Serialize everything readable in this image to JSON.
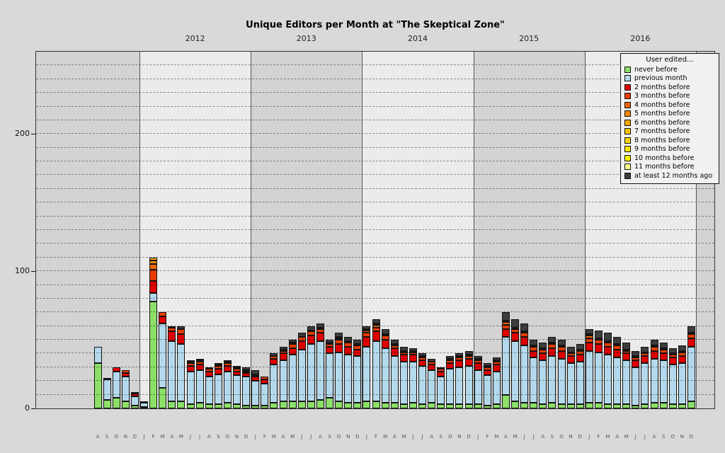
{
  "legend": {
    "title": "User edited...",
    "items": [
      {
        "label": "never before",
        "color": "#8ce068"
      },
      {
        "label": "previous month",
        "color": "#b4d9ec"
      },
      {
        "label": "2 months before",
        "color": "#e00000"
      },
      {
        "label": "3 months before",
        "color": "#e83c00"
      },
      {
        "label": "4 months before",
        "color": "#f06400"
      },
      {
        "label": "5 months before",
        "color": "#f58800"
      },
      {
        "label": "6 months before",
        "color": "#f9a800"
      },
      {
        "label": "7 months before",
        "color": "#fcc200"
      },
      {
        "label": "8 months before",
        "color": "#fdd700"
      },
      {
        "label": "9 months before",
        "color": "#ffe800"
      },
      {
        "label": "10 months before",
        "color": "#fff400"
      },
      {
        "label": "11 months before",
        "color": "#ffff8c"
      },
      {
        "label": "at least 12 months ago",
        "color": "#3d3d3d"
      }
    ]
  },
  "chart_data": {
    "type": "bar",
    "stacked": true,
    "title": "Unique Editors per Month at \"The Skeptical Zone\"",
    "xlabel": "",
    "ylabel": "",
    "ylim": [
      0,
      260
    ],
    "yticks": [
      0,
      100,
      200
    ],
    "grid_step": 10,
    "band_dark": "#d3d3d3",
    "band_light": "#ebebeb",
    "series": [
      "never before",
      "previous month",
      "2 months before",
      "3 months before",
      "4 months before",
      "5 months before",
      "6 months before",
      "7 months before",
      "8 months before",
      "9 months before",
      "10 months before",
      "11 months before",
      "at least 12 months ago"
    ],
    "years": [
      {
        "label": "2011",
        "months": 5,
        "show_label": false
      },
      {
        "label": "2012",
        "months": 12,
        "show_label": true
      },
      {
        "label": "2013",
        "months": 12,
        "show_label": true
      },
      {
        "label": "2014",
        "months": 12,
        "show_label": true
      },
      {
        "label": "2015",
        "months": 12,
        "show_label": true
      },
      {
        "label": "2016",
        "months": 12,
        "show_label": true
      }
    ],
    "bars": [
      {
        "m": "2011-08",
        "l": "A",
        "v": [
          33,
          12
        ]
      },
      {
        "m": "2011-09",
        "l": "S",
        "v": [
          6,
          15,
          1
        ]
      },
      {
        "m": "2011-10",
        "l": "O",
        "v": [
          8,
          19,
          3
        ]
      },
      {
        "m": "2011-11",
        "l": "N",
        "v": [
          5,
          18,
          3,
          2
        ]
      },
      {
        "m": "2011-12",
        "l": "D",
        "v": [
          2,
          7,
          2,
          1
        ]
      },
      {
        "m": "2012-01",
        "l": "J",
        "v": [
          1,
          3,
          1
        ]
      },
      {
        "m": "2012-02",
        "l": "F",
        "v": [
          78,
          6,
          9,
          8,
          4,
          3,
          2
        ]
      },
      {
        "m": "2012-03",
        "l": "M",
        "v": [
          15,
          47,
          5,
          3
        ]
      },
      {
        "m": "2012-04",
        "l": "A",
        "v": [
          5,
          44,
          7,
          3,
          0,
          0,
          0,
          0,
          0,
          0,
          0,
          0,
          1
        ]
      },
      {
        "m": "2012-05",
        "l": "M",
        "v": [
          5,
          42,
          7,
          4,
          0,
          0,
          0,
          0,
          0,
          0,
          0,
          0,
          2
        ]
      },
      {
        "m": "2012-06",
        "l": "J",
        "v": [
          3,
          24,
          4,
          2,
          1,
          0,
          0,
          0,
          0,
          0,
          0,
          0,
          1
        ]
      },
      {
        "m": "2012-07",
        "l": "J",
        "v": [
          4,
          24,
          4,
          2,
          1,
          0,
          0,
          0,
          0,
          0,
          0,
          0,
          1
        ]
      },
      {
        "m": "2012-08",
        "l": "A",
        "v": [
          3,
          20,
          4,
          2,
          0,
          1
        ]
      },
      {
        "m": "2012-09",
        "l": "S",
        "v": [
          3,
          22,
          4,
          2,
          1,
          1
        ]
      },
      {
        "m": "2012-10",
        "l": "O",
        "v": [
          4,
          23,
          4,
          2,
          1,
          0,
          0,
          0,
          0,
          0,
          0,
          0,
          1
        ]
      },
      {
        "m": "2012-11",
        "l": "N",
        "v": [
          3,
          21,
          3,
          2,
          1,
          0,
          0,
          0,
          0,
          0,
          0,
          0,
          1
        ]
      },
      {
        "m": "2012-12",
        "l": "D",
        "v": [
          2,
          21,
          3,
          1,
          1,
          0,
          0,
          0,
          0,
          0,
          0,
          0,
          2
        ]
      },
      {
        "m": "2013-01",
        "l": "J",
        "v": [
          2,
          18,
          3,
          1,
          1,
          0,
          0,
          0,
          0,
          0,
          0,
          0,
          3
        ]
      },
      {
        "m": "2013-02",
        "l": "F",
        "v": [
          2,
          16,
          3,
          2
        ]
      },
      {
        "m": "2013-03",
        "l": "M",
        "v": [
          4,
          28,
          4,
          2,
          0,
          0,
          0,
          0,
          0,
          0,
          0,
          0,
          2
        ]
      },
      {
        "m": "2013-04",
        "l": "A",
        "v": [
          5,
          30,
          5,
          2,
          1,
          0,
          0,
          0,
          0,
          0,
          0,
          0,
          2
        ]
      },
      {
        "m": "2013-05",
        "l": "M",
        "v": [
          5,
          34,
          5,
          3,
          1,
          0,
          0,
          0,
          0,
          0,
          0,
          0,
          2
        ]
      },
      {
        "m": "2013-06",
        "l": "J",
        "v": [
          5,
          38,
          6,
          3,
          0,
          0,
          0,
          0,
          0,
          0,
          0,
          0,
          3
        ]
      },
      {
        "m": "2013-07",
        "l": "J",
        "v": [
          5,
          42,
          6,
          3,
          1,
          0,
          0,
          0,
          0,
          0,
          0,
          0,
          3
        ]
      },
      {
        "m": "2013-08",
        "l": "A",
        "v": [
          6,
          43,
          6,
          3,
          1,
          0,
          0,
          0,
          0,
          0,
          0,
          0,
          3
        ]
      },
      {
        "m": "2013-09",
        "l": "S",
        "v": [
          8,
          32,
          5,
          2,
          1,
          0,
          0,
          0,
          0,
          0,
          0,
          0,
          2
        ]
      },
      {
        "m": "2013-10",
        "l": "O",
        "v": [
          5,
          36,
          6,
          3,
          1,
          1,
          0,
          0,
          0,
          0,
          0,
          0,
          3
        ]
      },
      {
        "m": "2013-11",
        "l": "N",
        "v": [
          4,
          35,
          6,
          3,
          1,
          0,
          0,
          0,
          0,
          0,
          0,
          0,
          3
        ]
      },
      {
        "m": "2013-12",
        "l": "D",
        "v": [
          4,
          34,
          5,
          3,
          1,
          0,
          0,
          0,
          0,
          0,
          0,
          0,
          3
        ]
      },
      {
        "m": "2014-01",
        "l": "J",
        "v": [
          5,
          40,
          7,
          3,
          2,
          1,
          0,
          0,
          0,
          0,
          0,
          0,
          2
        ]
      },
      {
        "m": "2014-02",
        "l": "F",
        "v": [
          5,
          44,
          7,
          3,
          2,
          1,
          0,
          0,
          0,
          0,
          0,
          0,
          3
        ]
      },
      {
        "m": "2014-03",
        "l": "M",
        "v": [
          4,
          40,
          6,
          3,
          1,
          0,
          0,
          0,
          0,
          0,
          0,
          0,
          4
        ]
      },
      {
        "m": "2014-04",
        "l": "A",
        "v": [
          4,
          34,
          6,
          2,
          1,
          0,
          0,
          0,
          0,
          0,
          0,
          0,
          3
        ]
      },
      {
        "m": "2014-05",
        "l": "M",
        "v": [
          3,
          31,
          5,
          2,
          1,
          0,
          0,
          0,
          0,
          0,
          0,
          0,
          3
        ]
      },
      {
        "m": "2014-06",
        "l": "J",
        "v": [
          4,
          30,
          5,
          2,
          1,
          0,
          0,
          0,
          0,
          0,
          0,
          0,
          2
        ]
      },
      {
        "m": "2014-07",
        "l": "J",
        "v": [
          3,
          28,
          4,
          2,
          1,
          0,
          0,
          0,
          0,
          0,
          0,
          0,
          2
        ]
      },
      {
        "m": "2014-08",
        "l": "A",
        "v": [
          4,
          24,
          4,
          2,
          0,
          0,
          0,
          0,
          0,
          0,
          0,
          0,
          2
        ]
      },
      {
        "m": "2014-09",
        "l": "S",
        "v": [
          3,
          20,
          4,
          2,
          0,
          0,
          0,
          0,
          0,
          0,
          0,
          0,
          1
        ]
      },
      {
        "m": "2014-10",
        "l": "O",
        "v": [
          3,
          26,
          4,
          2,
          1,
          0,
          0,
          0,
          0,
          0,
          0,
          0,
          2
        ]
      },
      {
        "m": "2014-11",
        "l": "N",
        "v": [
          3,
          27,
          5,
          2,
          1,
          0,
          0,
          0,
          0,
          0,
          0,
          0,
          2
        ]
      },
      {
        "m": "2014-12",
        "l": "D",
        "v": [
          3,
          28,
          5,
          2,
          1,
          0,
          0,
          0,
          0,
          0,
          0,
          0,
          3
        ]
      },
      {
        "m": "2015-01",
        "l": "J",
        "v": [
          3,
          25,
          5,
          2,
          1,
          0,
          0,
          0,
          0,
          0,
          0,
          0,
          2
        ]
      },
      {
        "m": "2015-02",
        "l": "F",
        "v": [
          2,
          22,
          4,
          2,
          1,
          0,
          0,
          0,
          0,
          0,
          0,
          0,
          2
        ]
      },
      {
        "m": "2015-03",
        "l": "M",
        "v": [
          3,
          24,
          5,
          2,
          1,
          0,
          0,
          0,
          0,
          0,
          0,
          0,
          2
        ]
      },
      {
        "m": "2015-04",
        "l": "A",
        "v": [
          10,
          42,
          6,
          3,
          2,
          1,
          0,
          0,
          0,
          0,
          0,
          0,
          6
        ]
      },
      {
        "m": "2015-05",
        "l": "M",
        "v": [
          5,
          44,
          6,
          3,
          1,
          0,
          0,
          0,
          0,
          0,
          0,
          0,
          6
        ]
      },
      {
        "m": "2015-06",
        "l": "J",
        "v": [
          4,
          42,
          6,
          3,
          1,
          0,
          0,
          0,
          0,
          0,
          0,
          0,
          6
        ]
      },
      {
        "m": "2015-07",
        "l": "J",
        "v": [
          4,
          33,
          5,
          3,
          1,
          0,
          0,
          0,
          0,
          0,
          0,
          0,
          4
        ]
      },
      {
        "m": "2015-08",
        "l": "A",
        "v": [
          3,
          32,
          5,
          3,
          1,
          0,
          0,
          0,
          0,
          0,
          0,
          0,
          4
        ]
      },
      {
        "m": "2015-09",
        "l": "S",
        "v": [
          4,
          34,
          6,
          3,
          1,
          0,
          0,
          0,
          0,
          0,
          0,
          0,
          4
        ]
      },
      {
        "m": "2015-10",
        "l": "O",
        "v": [
          3,
          33,
          6,
          3,
          1,
          0,
          0,
          0,
          0,
          0,
          0,
          0,
          4
        ]
      },
      {
        "m": "2015-11",
        "l": "N",
        "v": [
          3,
          30,
          5,
          2,
          1,
          0,
          0,
          0,
          0,
          0,
          0,
          0,
          4
        ]
      },
      {
        "m": "2015-12",
        "l": "D",
        "v": [
          3,
          31,
          5,
          3,
          1,
          0,
          0,
          0,
          0,
          0,
          0,
          0,
          4
        ]
      },
      {
        "m": "2016-01",
        "l": "J",
        "v": [
          4,
          38,
          6,
          3,
          2,
          1,
          0,
          0,
          0,
          0,
          0,
          0,
          4
        ]
      },
      {
        "m": "2016-02",
        "l": "F",
        "v": [
          4,
          37,
          6,
          3,
          1,
          0,
          0,
          0,
          0,
          0,
          0,
          0,
          6
        ]
      },
      {
        "m": "2016-03",
        "l": "M",
        "v": [
          3,
          36,
          6,
          3,
          1,
          0,
          0,
          0,
          0,
          0,
          0,
          0,
          6
        ]
      },
      {
        "m": "2016-04",
        "l": "A",
        "v": [
          3,
          34,
          6,
          3,
          1,
          0,
          0,
          0,
          0,
          0,
          0,
          0,
          5
        ]
      },
      {
        "m": "2016-05",
        "l": "M",
        "v": [
          3,
          32,
          5,
          2,
          1,
          0,
          0,
          0,
          0,
          0,
          0,
          0,
          5
        ]
      },
      {
        "m": "2016-06",
        "l": "J",
        "v": [
          2,
          28,
          5,
          2,
          1,
          0,
          0,
          0,
          0,
          0,
          0,
          0,
          4
        ]
      },
      {
        "m": "2016-07",
        "l": "J",
        "v": [
          3,
          30,
          5,
          2,
          1,
          0,
          0,
          0,
          0,
          0,
          0,
          0,
          4
        ]
      },
      {
        "m": "2016-08",
        "l": "A",
        "v": [
          4,
          32,
          6,
          3,
          1,
          0,
          0,
          0,
          0,
          0,
          0,
          0,
          4
        ]
      },
      {
        "m": "2016-09",
        "l": "S",
        "v": [
          4,
          31,
          5,
          3,
          1,
          0,
          0,
          0,
          0,
          0,
          0,
          0,
          4
        ]
      },
      {
        "m": "2016-10",
        "l": "O",
        "v": [
          3,
          29,
          5,
          2,
          1,
          0,
          0,
          0,
          0,
          0,
          0,
          0,
          4
        ]
      },
      {
        "m": "2016-11",
        "l": "N",
        "v": [
          3,
          30,
          5,
          3,
          1,
          0,
          0,
          0,
          0,
          0,
          0,
          0,
          4
        ]
      },
      {
        "m": "2016-12",
        "l": "D",
        "v": [
          5,
          40,
          6,
          3,
          1,
          0,
          0,
          0,
          0,
          0,
          0,
          0,
          5
        ]
      }
    ]
  }
}
